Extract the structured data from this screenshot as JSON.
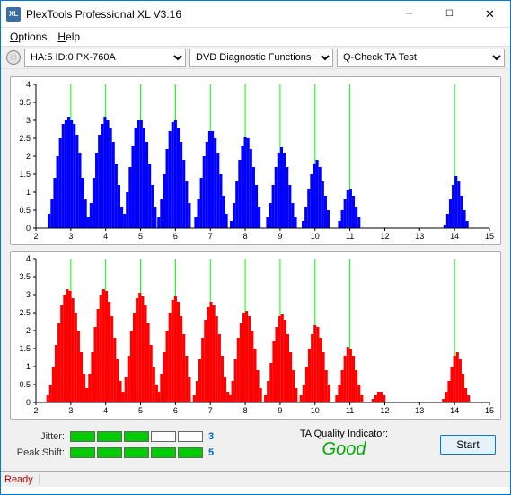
{
  "window": {
    "title": "PlexTools Professional XL V3.16",
    "icon_text": "XL"
  },
  "menu": {
    "options": "Options",
    "help": "Help"
  },
  "toolbar": {
    "drive": "HA:5 ID:0   PX-760A",
    "func": "DVD Diagnostic Functions",
    "test": "Q-Check TA Test"
  },
  "charts": {
    "ymin": 0,
    "ymax": 4,
    "ystep": 0.5,
    "xmin": 2,
    "xmax": 15,
    "xstep": 1,
    "grid_x": [
      3,
      4,
      5,
      6,
      7,
      8,
      9,
      10,
      11,
      14
    ],
    "grid_color": "#00ff00",
    "axis_color": "#000000",
    "tick_color": "#000000",
    "background": "#ffffff",
    "label_fontsize": 9,
    "top": {
      "bar_color": "#0000ff",
      "bars": [
        [
          2.38,
          0.4
        ],
        [
          2.46,
          0.8
        ],
        [
          2.54,
          1.4
        ],
        [
          2.62,
          2.0
        ],
        [
          2.7,
          2.5
        ],
        [
          2.78,
          2.9
        ],
        [
          2.86,
          3.0
        ],
        [
          2.94,
          3.1
        ],
        [
          3.02,
          3.0
        ],
        [
          3.1,
          2.9
        ],
        [
          3.18,
          2.6
        ],
        [
          3.26,
          2.1
        ],
        [
          3.34,
          1.4
        ],
        [
          3.42,
          0.8
        ],
        [
          3.5,
          0.3
        ],
        [
          3.5,
          0.3
        ],
        [
          3.58,
          0.7
        ],
        [
          3.66,
          1.4
        ],
        [
          3.74,
          2.1
        ],
        [
          3.82,
          2.6
        ],
        [
          3.9,
          2.9
        ],
        [
          3.98,
          3.1
        ],
        [
          4.06,
          3.0
        ],
        [
          4.14,
          2.8
        ],
        [
          4.22,
          2.4
        ],
        [
          4.3,
          1.8
        ],
        [
          4.38,
          1.2
        ],
        [
          4.46,
          0.6
        ],
        [
          4.54,
          0.4
        ],
        [
          4.62,
          1.0
        ],
        [
          4.7,
          1.7
        ],
        [
          4.78,
          2.3
        ],
        [
          4.86,
          2.8
        ],
        [
          4.94,
          3.0
        ],
        [
          5.02,
          3.0
        ],
        [
          5.1,
          2.8
        ],
        [
          5.18,
          2.4
        ],
        [
          5.26,
          1.8
        ],
        [
          5.34,
          1.2
        ],
        [
          5.42,
          0.6
        ],
        [
          5.52,
          0.3
        ],
        [
          5.6,
          0.8
        ],
        [
          5.68,
          1.5
        ],
        [
          5.76,
          2.2
        ],
        [
          5.84,
          2.7
        ],
        [
          5.92,
          2.95
        ],
        [
          6.0,
          3.0
        ],
        [
          6.08,
          2.8
        ],
        [
          6.16,
          2.4
        ],
        [
          6.24,
          1.9
        ],
        [
          6.32,
          1.3
        ],
        [
          6.4,
          0.7
        ],
        [
          6.58,
          0.3
        ],
        [
          6.66,
          0.8
        ],
        [
          6.74,
          1.4
        ],
        [
          6.82,
          2.0
        ],
        [
          6.9,
          2.4
        ],
        [
          6.98,
          2.7
        ],
        [
          7.06,
          2.7
        ],
        [
          7.14,
          2.5
        ],
        [
          7.22,
          2.1
        ],
        [
          7.3,
          1.5
        ],
        [
          7.38,
          0.9
        ],
        [
          7.46,
          0.4
        ],
        [
          7.6,
          0.2
        ],
        [
          7.68,
          0.7
        ],
        [
          7.76,
          1.3
        ],
        [
          7.84,
          1.9
        ],
        [
          7.92,
          2.3
        ],
        [
          8.0,
          2.55
        ],
        [
          8.08,
          2.5
        ],
        [
          8.16,
          2.2
        ],
        [
          8.24,
          1.7
        ],
        [
          8.32,
          1.2
        ],
        [
          8.4,
          0.6
        ],
        [
          8.64,
          0.3
        ],
        [
          8.72,
          0.7
        ],
        [
          8.8,
          1.2
        ],
        [
          8.88,
          1.7
        ],
        [
          8.96,
          2.1
        ],
        [
          9.04,
          2.25
        ],
        [
          9.12,
          2.1
        ],
        [
          9.2,
          1.7
        ],
        [
          9.28,
          1.2
        ],
        [
          9.36,
          0.7
        ],
        [
          9.44,
          0.3
        ],
        [
          9.66,
          0.2
        ],
        [
          9.74,
          0.6
        ],
        [
          9.82,
          1.1
        ],
        [
          9.9,
          1.5
        ],
        [
          9.98,
          1.8
        ],
        [
          10.06,
          1.9
        ],
        [
          10.14,
          1.7
        ],
        [
          10.22,
          1.3
        ],
        [
          10.3,
          0.9
        ],
        [
          10.38,
          0.5
        ],
        [
          10.7,
          0.2
        ],
        [
          10.78,
          0.5
        ],
        [
          10.86,
          0.8
        ],
        [
          10.94,
          1.05
        ],
        [
          11.02,
          1.1
        ],
        [
          11.1,
          0.9
        ],
        [
          11.18,
          0.6
        ],
        [
          11.26,
          0.3
        ],
        [
          13.72,
          0.1
        ],
        [
          13.8,
          0.4
        ],
        [
          13.88,
          0.8
        ],
        [
          13.96,
          1.2
        ],
        [
          14.04,
          1.45
        ],
        [
          14.12,
          1.3
        ],
        [
          14.2,
          0.9
        ],
        [
          14.28,
          0.5
        ],
        [
          14.36,
          0.2
        ]
      ]
    },
    "bottom": {
      "bar_color": "#ff0000",
      "bars": [
        [
          2.34,
          0.2
        ],
        [
          2.42,
          0.5
        ],
        [
          2.5,
          1.0
        ],
        [
          2.58,
          1.6
        ],
        [
          2.66,
          2.2
        ],
        [
          2.74,
          2.7
        ],
        [
          2.82,
          3.0
        ],
        [
          2.9,
          3.15
        ],
        [
          2.98,
          3.1
        ],
        [
          3.06,
          2.9
        ],
        [
          3.14,
          2.5
        ],
        [
          3.22,
          2.0
        ],
        [
          3.3,
          1.4
        ],
        [
          3.38,
          0.8
        ],
        [
          3.46,
          0.4
        ],
        [
          3.46,
          0.4
        ],
        [
          3.54,
          0.8
        ],
        [
          3.62,
          1.4
        ],
        [
          3.7,
          2.1
        ],
        [
          3.78,
          2.6
        ],
        [
          3.86,
          3.0
        ],
        [
          3.94,
          3.15
        ],
        [
          4.02,
          3.1
        ],
        [
          4.1,
          2.8
        ],
        [
          4.18,
          2.4
        ],
        [
          4.26,
          1.8
        ],
        [
          4.34,
          1.2
        ],
        [
          4.42,
          0.6
        ],
        [
          4.5,
          0.3
        ],
        [
          4.58,
          0.7
        ],
        [
          4.66,
          1.3
        ],
        [
          4.74,
          2.0
        ],
        [
          4.82,
          2.5
        ],
        [
          4.9,
          2.9
        ],
        [
          4.98,
          3.05
        ],
        [
          5.06,
          2.95
        ],
        [
          5.14,
          2.7
        ],
        [
          5.22,
          2.2
        ],
        [
          5.3,
          1.6
        ],
        [
          5.38,
          1.0
        ],
        [
          5.46,
          0.5
        ],
        [
          5.52,
          0.3
        ],
        [
          5.6,
          0.8
        ],
        [
          5.68,
          1.4
        ],
        [
          5.76,
          2.0
        ],
        [
          5.84,
          2.5
        ],
        [
          5.92,
          2.85
        ],
        [
          6.0,
          2.95
        ],
        [
          6.08,
          2.8
        ],
        [
          6.16,
          2.4
        ],
        [
          6.24,
          1.9
        ],
        [
          6.32,
          1.3
        ],
        [
          6.4,
          0.7
        ],
        [
          6.54,
          0.2
        ],
        [
          6.62,
          0.6
        ],
        [
          6.7,
          1.2
        ],
        [
          6.78,
          1.8
        ],
        [
          6.86,
          2.3
        ],
        [
          6.94,
          2.65
        ],
        [
          7.02,
          2.8
        ],
        [
          7.1,
          2.7
        ],
        [
          7.18,
          2.4
        ],
        [
          7.26,
          1.9
        ],
        [
          7.34,
          1.3
        ],
        [
          7.42,
          0.7
        ],
        [
          7.5,
          0.3
        ],
        [
          7.56,
          0.2
        ],
        [
          7.64,
          0.6
        ],
        [
          7.72,
          1.2
        ],
        [
          7.8,
          1.8
        ],
        [
          7.88,
          2.2
        ],
        [
          7.96,
          2.5
        ],
        [
          8.04,
          2.55
        ],
        [
          8.12,
          2.4
        ],
        [
          8.2,
          2.0
        ],
        [
          8.28,
          1.5
        ],
        [
          8.36,
          0.9
        ],
        [
          8.44,
          0.4
        ],
        [
          8.58,
          0.2
        ],
        [
          8.66,
          0.6
        ],
        [
          8.74,
          1.1
        ],
        [
          8.82,
          1.7
        ],
        [
          8.9,
          2.1
        ],
        [
          8.98,
          2.4
        ],
        [
          9.06,
          2.45
        ],
        [
          9.14,
          2.3
        ],
        [
          9.22,
          1.9
        ],
        [
          9.3,
          1.4
        ],
        [
          9.38,
          0.9
        ],
        [
          9.46,
          0.4
        ],
        [
          9.6,
          0.2
        ],
        [
          9.68,
          0.5
        ],
        [
          9.76,
          1.0
        ],
        [
          9.84,
          1.5
        ],
        [
          9.92,
          1.9
        ],
        [
          10.0,
          2.15
        ],
        [
          10.08,
          2.1
        ],
        [
          10.16,
          1.8
        ],
        [
          10.24,
          1.4
        ],
        [
          10.32,
          0.9
        ],
        [
          10.4,
          0.5
        ],
        [
          10.62,
          0.2
        ],
        [
          10.7,
          0.5
        ],
        [
          10.78,
          0.9
        ],
        [
          10.86,
          1.3
        ],
        [
          10.94,
          1.55
        ],
        [
          11.02,
          1.5
        ],
        [
          11.1,
          1.3
        ],
        [
          11.18,
          0.9
        ],
        [
          11.26,
          0.5
        ],
        [
          11.34,
          0.2
        ],
        [
          11.66,
          0.1
        ],
        [
          11.74,
          0.2
        ],
        [
          11.82,
          0.3
        ],
        [
          11.9,
          0.3
        ],
        [
          11.98,
          0.2
        ],
        [
          13.68,
          0.1
        ],
        [
          13.76,
          0.3
        ],
        [
          13.84,
          0.6
        ],
        [
          13.92,
          1.0
        ],
        [
          14.0,
          1.3
        ],
        [
          14.08,
          1.4
        ],
        [
          14.16,
          1.2
        ],
        [
          14.24,
          0.8
        ],
        [
          14.32,
          0.4
        ],
        [
          14.4,
          0.2
        ]
      ]
    }
  },
  "metrics": {
    "jitter": {
      "label": "Jitter:",
      "value": "3",
      "filled": 3,
      "total": 5,
      "fill_color": "#00cc00"
    },
    "peakshift": {
      "label": "Peak Shift:",
      "value": "5",
      "filled": 5,
      "total": 5,
      "fill_color": "#00cc00"
    }
  },
  "ta": {
    "label": "TA Quality Indicator:",
    "value": "Good",
    "color": "#00aa00"
  },
  "start_btn": "Start",
  "status": "Ready"
}
